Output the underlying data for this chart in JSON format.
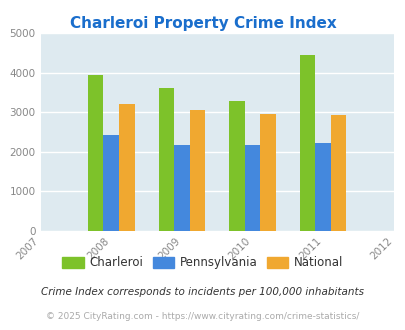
{
  "title": "Charleroi Property Crime Index",
  "title_color": "#1a6ecc",
  "years": [
    2007,
    2008,
    2009,
    2010,
    2011,
    2012
  ],
  "bar_years": [
    2008,
    2009,
    2010,
    2011
  ],
  "charleroi": [
    3950,
    3600,
    3280,
    4450
  ],
  "pennsylvania": [
    2420,
    2180,
    2180,
    2230
  ],
  "national": [
    3200,
    3050,
    2950,
    2920
  ],
  "charleroi_color": "#7dc22a",
  "pennsylvania_color": "#4488dd",
  "national_color": "#f0a830",
  "ylim": [
    0,
    5000
  ],
  "yticks": [
    0,
    1000,
    2000,
    3000,
    4000,
    5000
  ],
  "plot_bg_color": "#deeaf0",
  "legend_labels": [
    "Charleroi",
    "Pennsylvania",
    "National"
  ],
  "footnote1": "Crime Index corresponds to incidents per 100,000 inhabitants",
  "footnote2": "© 2025 CityRating.com - https://www.cityrating.com/crime-statistics/",
  "bar_width": 0.22,
  "grid_color": "#ffffff"
}
